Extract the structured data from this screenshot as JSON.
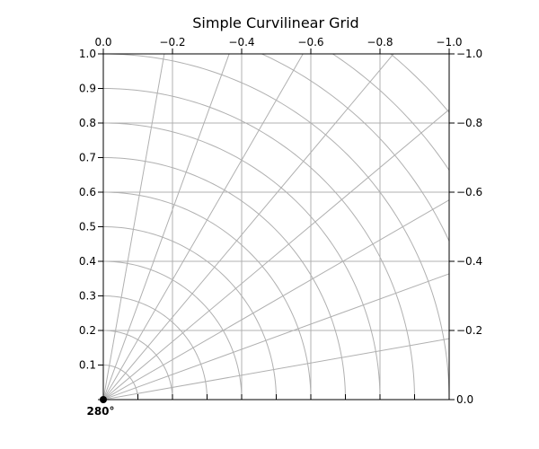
{
  "chart_data": {
    "type": "line",
    "title": "Simple Curvilinear Grid",
    "xlabel": "",
    "ylabel": "",
    "xlim": [
      0.0,
      1.0
    ],
    "ylim": [
      0.0,
      1.0
    ],
    "grid": true,
    "top_axis": {
      "ticks": [
        0.0,
        0.2,
        0.4,
        0.6,
        0.8,
        1.0
      ],
      "labels": [
        "0.0",
        "−0.2",
        "−0.4",
        "−0.6",
        "−0.8",
        "−1.0"
      ]
    },
    "left_axis": {
      "ticks": [
        0.0,
        0.1,
        0.2,
        0.3,
        0.4,
        0.5,
        0.6,
        0.7,
        0.8,
        0.9,
        1.0
      ],
      "labels": [
        "",
        "0.1",
        "0.2",
        "0.3",
        "0.4",
        "0.5",
        "0.6",
        "0.7",
        "0.8",
        "0.9",
        "1.0"
      ]
    },
    "right_axis": {
      "ticks": [
        0.0,
        0.2,
        0.4,
        0.6,
        0.8,
        1.0
      ],
      "labels": [
        "0.0",
        "−0.2",
        "−0.4",
        "−0.6",
        "−0.8",
        "−1.0"
      ]
    },
    "bottom_axis": {
      "ticks": [
        0.1,
        0.2,
        0.3,
        0.4,
        0.5,
        0.6,
        0.7,
        0.8,
        0.9,
        1.0
      ],
      "labels": [
        "",
        "",
        "",
        "",
        "",
        "",
        "",
        "",
        "",
        ""
      ],
      "origin_label": "280°"
    },
    "curvilinear_grid": {
      "radii": [
        0.1,
        0.2,
        0.3,
        0.4,
        0.5,
        0.6,
        0.7,
        0.8,
        0.9,
        1.0,
        1.1,
        1.2,
        1.3
      ],
      "angles_deg": [
        10,
        20,
        30,
        40,
        50,
        60,
        70,
        80
      ],
      "horizontal_lines_y": [
        0.2,
        0.4,
        0.6,
        0.8
      ],
      "vertical_lines_x": [
        0.2,
        0.4,
        0.6,
        0.8
      ]
    },
    "colors": {
      "grid": "#b0b0b0",
      "axis": "#000000",
      "background": "#ffffff"
    }
  }
}
